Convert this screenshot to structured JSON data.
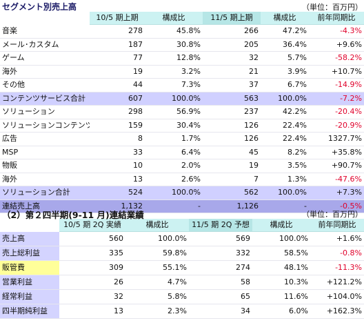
{
  "section1": {
    "title": "セグメント別売上高",
    "unit": "（単位：百万円）",
    "headers": [
      "10/5 期上期",
      "構成比",
      "11/5 期上期",
      "構成比",
      "前年同期比"
    ],
    "rows": [
      {
        "label": "音楽",
        "v1": "278",
        "p1": "45.8%",
        "v2": "266",
        "p2": "47.2%",
        "yoy": "-4.3%",
        "neg": true,
        "kind": "normal"
      },
      {
        "label": "メール･カスタム",
        "v1": "187",
        "p1": "30.8%",
        "v2": "205",
        "p2": "36.4%",
        "yoy": "+9.6%",
        "neg": false,
        "kind": "normal"
      },
      {
        "label": "ゲーム",
        "v1": "77",
        "p1": "12.8%",
        "v2": "32",
        "p2": "5.7%",
        "yoy": "-58.2%",
        "neg": true,
        "kind": "normal"
      },
      {
        "label": "海外",
        "v1": "19",
        "p1": "3.2%",
        "v2": "21",
        "p2": "3.9%",
        "yoy": "+10.7%",
        "neg": false,
        "kind": "normal"
      },
      {
        "label": "その他",
        "v1": "44",
        "p1": "7.3%",
        "v2": "37",
        "p2": "6.7%",
        "yoy": "-14.9%",
        "neg": true,
        "kind": "normal"
      },
      {
        "label": "コンテンツサービス合計",
        "v1": "607",
        "p1": "100.0%",
        "v2": "563",
        "p2": "100.0%",
        "yoy": "-7.2%",
        "neg": true,
        "kind": "sub"
      },
      {
        "label": "ソリューション",
        "v1": "298",
        "p1": "56.9%",
        "v2": "237",
        "p2": "42.2%",
        "yoy": "-20.4%",
        "neg": true,
        "kind": "normal"
      },
      {
        "label": "ソリューションコンテンツ",
        "v1": "159",
        "p1": "30.4%",
        "v2": "126",
        "p2": "22.4%",
        "yoy": "-20.9%",
        "neg": true,
        "kind": "normal"
      },
      {
        "label": "広告",
        "v1": "8",
        "p1": "1.7%",
        "v2": "126",
        "p2": "22.4%",
        "yoy": "1327.7%",
        "neg": false,
        "kind": "normal"
      },
      {
        "label": "MSP",
        "v1": "33",
        "p1": "6.4%",
        "v2": "45",
        "p2": "8.2%",
        "yoy": "+35.8%",
        "neg": false,
        "kind": "normal"
      },
      {
        "label": "物販",
        "v1": "10",
        "p1": "2.0%",
        "v2": "19",
        "p2": "3.5%",
        "yoy": "+90.7%",
        "neg": false,
        "kind": "normal"
      },
      {
        "label": "海外",
        "v1": "13",
        "p1": "2.6%",
        "v2": "7",
        "p2": "1.3%",
        "yoy": "-47.6%",
        "neg": true,
        "kind": "normal"
      },
      {
        "label": "ソリューション合計",
        "v1": "524",
        "p1": "100.0%",
        "v2": "562",
        "p2": "100.0%",
        "yoy": "+7.3%",
        "neg": false,
        "kind": "sub"
      },
      {
        "label": "連結売上高",
        "v1": "1,132",
        "p1": "-",
        "v2": "1,126",
        "p2": "-",
        "yoy": "-0.5%",
        "neg": true,
        "kind": "total"
      }
    ]
  },
  "section2": {
    "title": "（2）第２四半期(9-11 月)連結業績",
    "unit": "（単位：百万円）",
    "headers": [
      "10/5 期 2Q 実績",
      "構成比",
      "11/5 期 2Q 予想",
      "構成比",
      "前年同期比"
    ],
    "rows": [
      {
        "label": "売上高",
        "v1": "560",
        "p1": "100.0%",
        "v2": "569",
        "p2": "100.0%",
        "yoy": "+1.6%",
        "neg": false,
        "color": "blue"
      },
      {
        "label": "売上総利益",
        "v1": "335",
        "p1": "59.8%",
        "v2": "332",
        "p2": "58.5%",
        "yoy": "-0.8%",
        "neg": true,
        "color": "blue"
      },
      {
        "label": "販管費",
        "v1": "309",
        "p1": "55.1%",
        "v2": "274",
        "p2": "48.1%",
        "yoy": "-11.3%",
        "neg": true,
        "color": "yellow"
      },
      {
        "label": "営業利益",
        "v1": "26",
        "p1": "4.7%",
        "v2": "58",
        "p2": "10.3%",
        "yoy": "+121.2%",
        "neg": false,
        "color": "blue"
      },
      {
        "label": "経常利益",
        "v1": "32",
        "p1": "5.8%",
        "v2": "65",
        "p2": "11.6%",
        "yoy": "+104.0%",
        "neg": false,
        "color": "blue"
      },
      {
        "label": "四半期純利益",
        "v1": "13",
        "p1": "2.3%",
        "v2": "34",
        "p2": "6.0%",
        "yoy": "+162.3%",
        "neg": false,
        "color": "blue"
      }
    ]
  }
}
